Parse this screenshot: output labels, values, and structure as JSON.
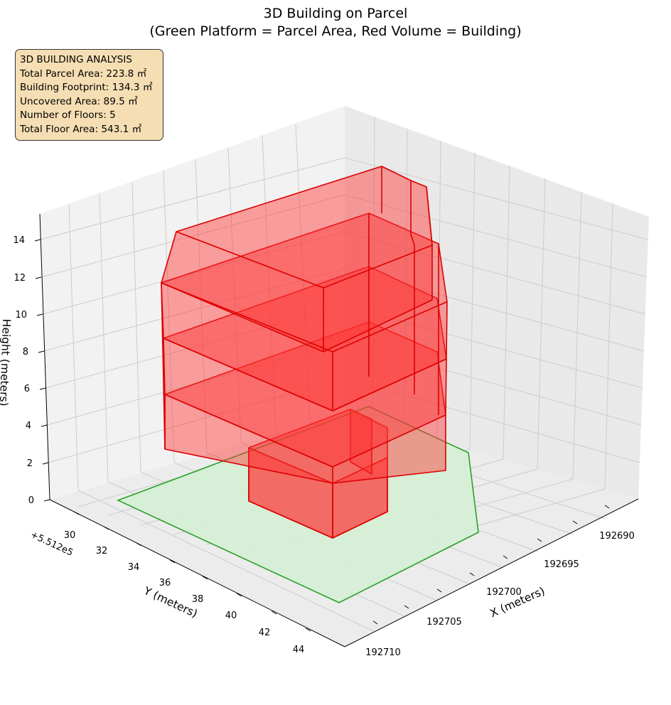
{
  "title": {
    "line1": "3D Building on Parcel",
    "line2": "(Green Platform = Parcel Area, Red Volume = Building)"
  },
  "info_box": {
    "heading": "3D BUILDING ANALYSIS",
    "lines": [
      "Total Parcel Area: 223.8 ㎡",
      "Building Footprint: 134.3 ㎡",
      "Uncovered Area: 89.5 ㎡",
      "Number of Floors: 5",
      "Total Floor Area: 543.1 ㎡"
    ]
  },
  "colors": {
    "parcel_fill": "#d4f0d4",
    "parcel_edge": "#2ca02c",
    "building_fill": "#ff3333",
    "building_edge": "#dd0000",
    "pane": "#f2f2f2",
    "grid": "#cccccc",
    "info_box_bg": "#f5deb3"
  },
  "chart_data": {
    "type": "3d-polygons",
    "title": "3D Building on Parcel\n(Green Platform = Parcel Area, Red Volume = Building)",
    "xlabel": "X (meters)",
    "ylabel": "Y (meters)",
    "zlabel": "Height (meters)",
    "y_offset_label": "+5.512e5",
    "x_ticks": [
      "192690",
      "192695",
      "192700",
      "192705",
      "192710"
    ],
    "y_ticks": [
      "30",
      "32",
      "34",
      "36",
      "38",
      "40",
      "42",
      "44"
    ],
    "z_ticks": [
      "0",
      "2",
      "4",
      "6",
      "8",
      "10",
      "12",
      "14"
    ],
    "z_range": [
      0,
      15
    ],
    "grid": true,
    "series": [
      {
        "name": "Parcel Area",
        "kind": "platform",
        "height": 0
      },
      {
        "name": "Building",
        "kind": "volume",
        "floors": 5,
        "floor_height": 3
      }
    ]
  }
}
